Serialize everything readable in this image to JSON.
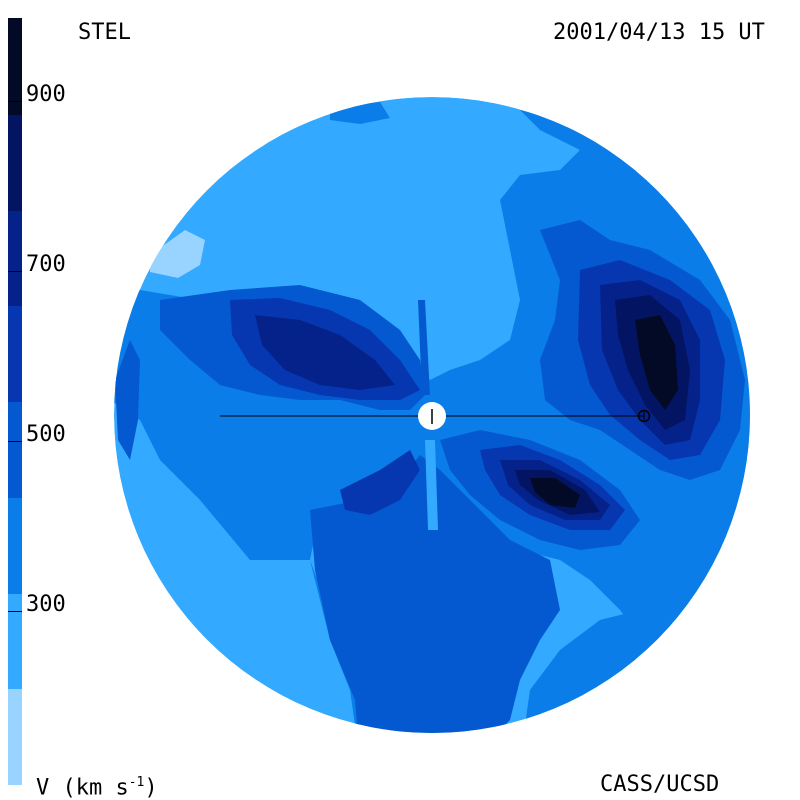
{
  "header": {
    "left_title": "STEL",
    "right_title": "2001/04/13 15 UT"
  },
  "footer": {
    "left_label": "V (km s",
    "left_label_exp": "-1",
    "left_label_close": ")",
    "right_label": "CASS/UCSD"
  },
  "colorbar": {
    "units": "km s-1",
    "ticks": [
      "900",
      "700",
      "500",
      "300"
    ],
    "levels": [
      {
        "min": 200,
        "max": 300,
        "color": "#99d3ff"
      },
      {
        "min": 300,
        "max": 400,
        "color": "#33aaff"
      },
      {
        "min": 400,
        "max": 500,
        "color": "#0a7de8"
      },
      {
        "min": 500,
        "max": 600,
        "color": "#0559d0"
      },
      {
        "min": 600,
        "max": 700,
        "color": "#0637b0"
      },
      {
        "min": 700,
        "max": 800,
        "color": "#04228a"
      },
      {
        "min": 800,
        "max": 900,
        "color": "#031562"
      },
      {
        "min": 900,
        "max": 1000,
        "color": "#020a26"
      }
    ]
  },
  "colors": {
    "background": "#ffffff",
    "sun": "#ffffff"
  }
}
